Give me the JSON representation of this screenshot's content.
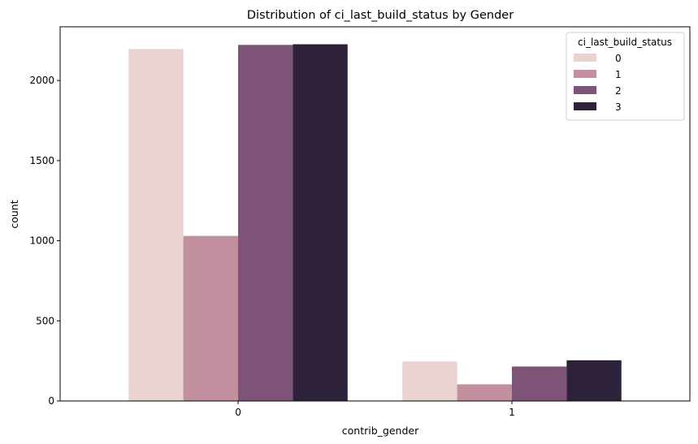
{
  "chart_data": {
    "type": "bar",
    "title": "Distribution of ci_last_build_status by Gender",
    "xlabel": "contrib_gender",
    "ylabel": "count",
    "categories": [
      "0",
      "1"
    ],
    "ylim": [
      0,
      2335
    ],
    "yticks": [
      0,
      500,
      1000,
      1500,
      2000
    ],
    "grid": false,
    "legend": {
      "title": "ci_last_build_status",
      "placement": "top-right"
    },
    "series": [
      {
        "name": "0",
        "color": "#e8d3d0",
        "values": [
          2196,
          247
        ]
      },
      {
        "name": "1",
        "color": "#c18f9e",
        "values": [
          1030,
          104
        ]
      },
      {
        "name": "2",
        "color": "#7d5478",
        "values": [
          2222,
          215
        ]
      },
      {
        "name": "3",
        "color": "#2e223b",
        "values": [
          2226,
          254
        ]
      }
    ]
  }
}
